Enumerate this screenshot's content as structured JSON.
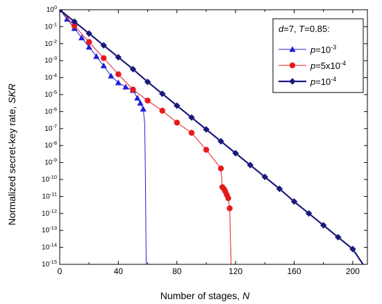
{
  "chart_data": {
    "type": "line",
    "xlabel": {
      "main": "Number of stages, ",
      "symbol": "N"
    },
    "ylabel": {
      "main": "Normalized secret-key rate, ",
      "symbol": "SKR"
    },
    "xlim": [
      0,
      210
    ],
    "ylim_exponent": [
      -15,
      0
    ],
    "yscale": "log",
    "xticks": [
      0,
      40,
      80,
      120,
      160,
      200
    ],
    "x_minor_step": 20,
    "y_tick_exponents": [
      0,
      -1,
      -2,
      -3,
      -4,
      -5,
      -6,
      -7,
      -8,
      -9,
      -10,
      -11,
      -12,
      -13,
      -14,
      -15
    ],
    "legend": {
      "title_parts": [
        "d",
        "=7, ",
        "T",
        "=0.85:"
      ],
      "position": "top-right"
    },
    "series": [
      {
        "name_parts": {
          "var": "p",
          "pre": "=10",
          "sup": "-3"
        },
        "color": "#1f1fd6",
        "marker": "triangle",
        "line_width": 1,
        "x": [
          0,
          5,
          10,
          15,
          20,
          25,
          30,
          35,
          40,
          45,
          50,
          53,
          55,
          57,
          58,
          58.5,
          59
        ],
        "y_exponent": [
          0,
          -0.55,
          -1.1,
          -1.65,
          -2.2,
          -2.75,
          -3.3,
          -3.9,
          -4.3,
          -4.55,
          -4.75,
          -5.2,
          -5.5,
          -5.85,
          -6.7,
          -10,
          -15
        ],
        "marker_count": 14
      },
      {
        "name_parts": {
          "var": "p",
          "pre": "=5x10",
          "sup": "-4"
        },
        "color": "#e41b1b",
        "marker": "circle",
        "line_width": 1,
        "x": [
          0,
          10,
          20,
          30,
          40,
          50,
          60,
          70,
          80,
          90,
          100,
          110,
          111,
          112,
          113,
          114,
          115,
          116,
          116.5,
          117
        ],
        "y_exponent": [
          0,
          -0.95,
          -1.9,
          -2.85,
          -3.8,
          -4.7,
          -5.35,
          -5.95,
          -6.65,
          -7.25,
          -8.25,
          -9.35,
          -10.45,
          -10.55,
          -10.7,
          -10.9,
          -11.1,
          -11.7,
          -13.5,
          -15
        ],
        "marker_count": 18
      },
      {
        "name_parts": {
          "var": "p",
          "pre": "=10",
          "sup": "-4"
        },
        "color": "#1a1a7a",
        "marker": "diamond",
        "line_width": 2.2,
        "x": [
          0,
          10,
          20,
          30,
          40,
          50,
          60,
          70,
          80,
          90,
          100,
          110,
          120,
          130,
          140,
          150,
          160,
          170,
          180,
          190,
          200,
          207
        ],
        "y_exponent": [
          0,
          -0.7,
          -1.4,
          -2.1,
          -2.8,
          -3.5,
          -4.25,
          -4.95,
          -5.65,
          -6.35,
          -7.05,
          -7.75,
          -8.45,
          -9.15,
          -9.85,
          -10.55,
          -11.3,
          -12.0,
          -12.7,
          -13.4,
          -14.1,
          -15
        ],
        "marker_count": 21
      }
    ]
  }
}
